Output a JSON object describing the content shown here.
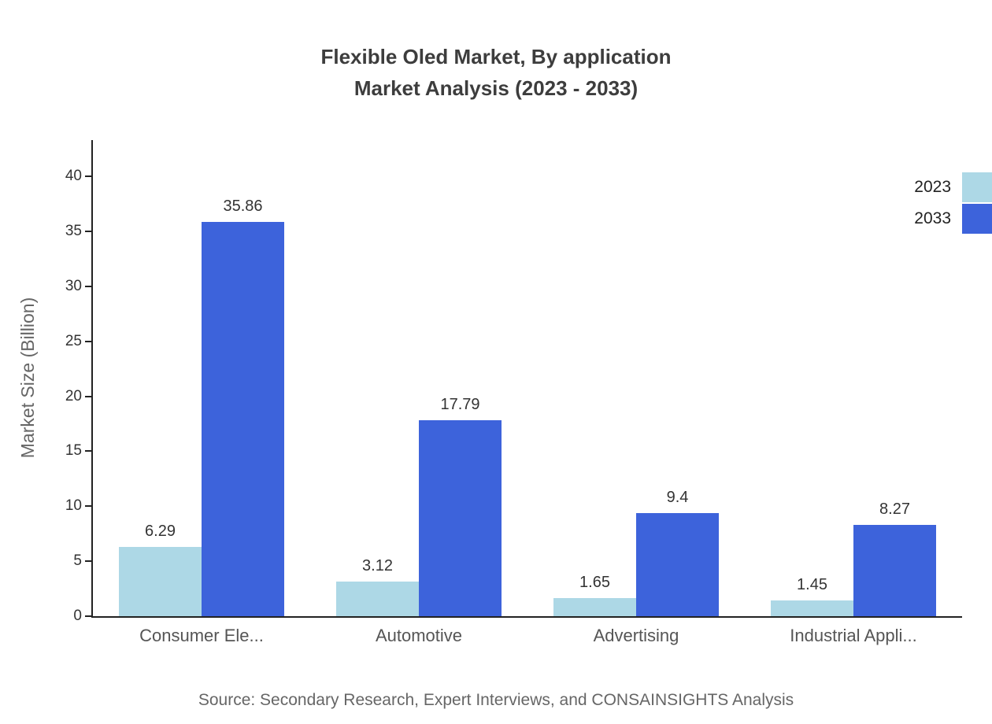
{
  "title": {
    "line1": "Flexible Oled Market, By application",
    "line2": "Market Analysis (2023 - 2033)"
  },
  "source": "Source: Secondary Research, Expert Interviews, and CONSAINSIGHTS Analysis",
  "legend": [
    {
      "label": "2023",
      "color": "#add8e6"
    },
    {
      "label": "2033",
      "color": "#3d63db"
    }
  ],
  "chart_data": {
    "type": "bar",
    "title": "Flexible Oled Market, By application Market Analysis (2023 - 2033)",
    "categories": [
      "Consumer Ele...",
      "Automotive",
      "Advertising",
      "Industrial Appli..."
    ],
    "series": [
      {
        "name": "2023",
        "color": "#add8e6",
        "values": [
          6.29,
          3.12,
          1.65,
          1.45
        ]
      },
      {
        "name": "2033",
        "color": "#3d63db",
        "values": [
          35.86,
          17.79,
          9.4,
          8.27
        ]
      }
    ],
    "xlabel": "",
    "ylabel": "Market Size (Billion)",
    "ylim": [
      0,
      43.15
    ],
    "yticks": [
      0,
      5,
      10,
      15,
      20,
      25,
      30,
      35,
      40
    ],
    "grid": false,
    "legend_position": "top-right"
  }
}
